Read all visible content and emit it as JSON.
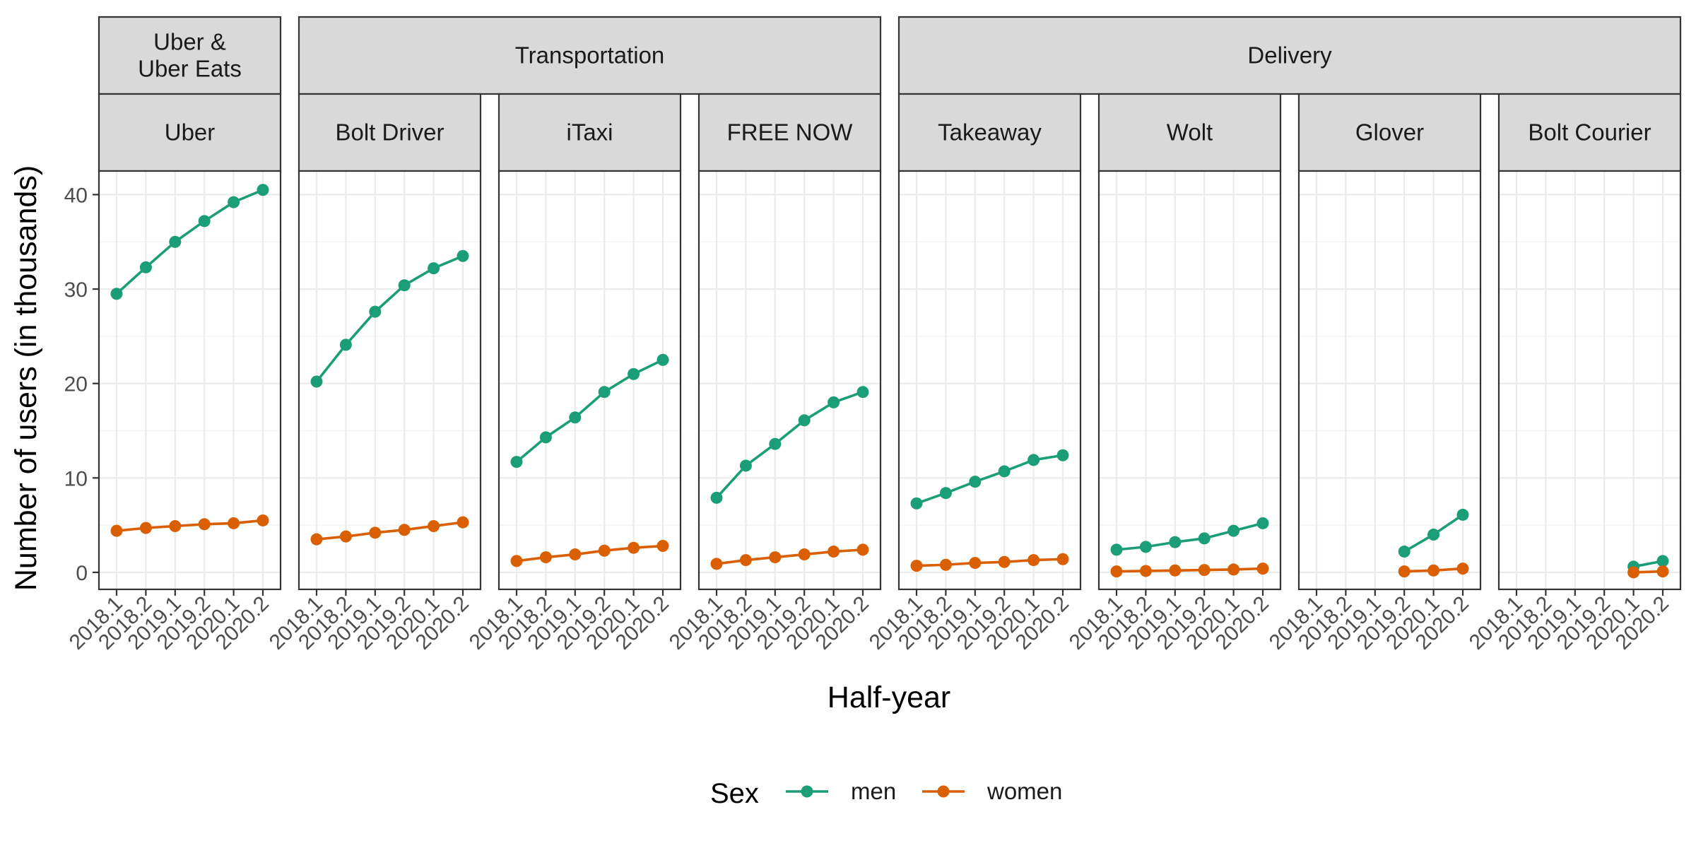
{
  "chart_data": {
    "type": "line",
    "title": "",
    "xlabel": "Half-year",
    "ylabel": "Number of users (in thousands)",
    "x": [
      "2018.1",
      "2018.2",
      "2019.1",
      "2019.2",
      "2020.1",
      "2020.2"
    ],
    "yticks": [
      0,
      10,
      20,
      30,
      40
    ],
    "ylim": [
      -1.8,
      42.5
    ],
    "grid": true,
    "legend": {
      "title": "Sex",
      "position": "bottom",
      "entries": [
        "men",
        "women"
      ]
    },
    "colors": {
      "men": "#1b9e77",
      "women": "#d95f02"
    },
    "groups": [
      {
        "label": "Uber &\nUber Eats",
        "panels": [
          "Uber"
        ]
      },
      {
        "label": "Transportation",
        "panels": [
          "Bolt Driver",
          "iTaxi",
          "FREE NOW"
        ]
      },
      {
        "label": "Delivery",
        "panels": [
          "Takeaway",
          "Wolt",
          "Glover",
          "Bolt Courier"
        ]
      }
    ],
    "panels": [
      {
        "name": "Uber",
        "series": [
          {
            "name": "men",
            "values": [
              29.5,
              32.3,
              35.0,
              37.2,
              39.2,
              40.5
            ]
          },
          {
            "name": "women",
            "values": [
              4.4,
              4.7,
              4.9,
              5.1,
              5.2,
              5.5
            ]
          }
        ]
      },
      {
        "name": "Bolt Driver",
        "series": [
          {
            "name": "men",
            "values": [
              20.2,
              24.1,
              27.6,
              30.4,
              32.2,
              33.5
            ]
          },
          {
            "name": "women",
            "values": [
              3.5,
              3.8,
              4.2,
              4.5,
              4.9,
              5.3
            ]
          }
        ]
      },
      {
        "name": "iTaxi",
        "series": [
          {
            "name": "men",
            "values": [
              11.7,
              14.3,
              16.4,
              19.1,
              21.0,
              22.5
            ]
          },
          {
            "name": "women",
            "values": [
              1.2,
              1.6,
              1.9,
              2.3,
              2.6,
              2.8
            ]
          }
        ]
      },
      {
        "name": "FREE NOW",
        "series": [
          {
            "name": "men",
            "values": [
              7.9,
              11.3,
              13.6,
              16.1,
              18.0,
              19.1
            ]
          },
          {
            "name": "women",
            "values": [
              0.9,
              1.3,
              1.6,
              1.9,
              2.2,
              2.4
            ]
          }
        ]
      },
      {
        "name": "Takeaway",
        "series": [
          {
            "name": "men",
            "values": [
              7.3,
              8.4,
              9.6,
              10.7,
              11.9,
              12.4
            ]
          },
          {
            "name": "women",
            "values": [
              0.7,
              0.8,
              1.0,
              1.1,
              1.3,
              1.4
            ]
          }
        ]
      },
      {
        "name": "Wolt",
        "series": [
          {
            "name": "men",
            "values": [
              2.4,
              2.7,
              3.2,
              3.6,
              4.4,
              5.2
            ]
          },
          {
            "name": "women",
            "values": [
              0.1,
              0.15,
              0.2,
              0.25,
              0.3,
              0.4
            ]
          }
        ]
      },
      {
        "name": "Glover",
        "series": [
          {
            "name": "men",
            "values": [
              null,
              null,
              null,
              2.2,
              4.0,
              6.1
            ]
          },
          {
            "name": "women",
            "values": [
              null,
              null,
              null,
              0.1,
              0.2,
              0.4
            ]
          }
        ]
      },
      {
        "name": "Bolt Courier",
        "series": [
          {
            "name": "men",
            "values": [
              null,
              null,
              null,
              null,
              0.6,
              1.2
            ]
          },
          {
            "name": "women",
            "values": [
              null,
              null,
              null,
              null,
              0.0,
              0.1
            ]
          }
        ]
      }
    ]
  }
}
